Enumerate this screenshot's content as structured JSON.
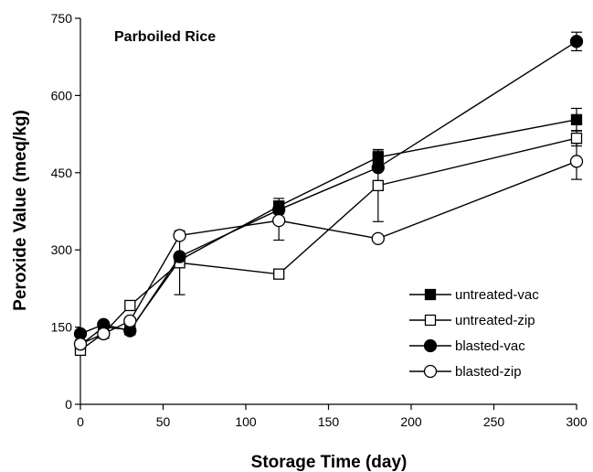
{
  "chart_data": {
    "type": "line",
    "title": "Parboiled Rice",
    "xlabel": "Storage Time (day)",
    "ylabel": "Peroxide Value (meq/kg)",
    "xlim": [
      0,
      300
    ],
    "ylim": [
      0,
      750
    ],
    "xticks": [
      0,
      50,
      100,
      150,
      200,
      250,
      300
    ],
    "yticks": [
      0,
      150,
      300,
      450,
      600,
      750
    ],
    "grid": false,
    "legend_position": "lower-right",
    "series": [
      {
        "name": "untreated-vac",
        "marker": "filled-square",
        "x": [
          0,
          14,
          30,
          60,
          120,
          180,
          300
        ],
        "y": [
          115,
          150,
          145,
          280,
          385,
          480,
          553
        ],
        "err": [
          0,
          0,
          0,
          0,
          15,
          12,
          22
        ]
      },
      {
        "name": "untreated-zip",
        "marker": "open-square",
        "x": [
          0,
          14,
          30,
          60,
          120,
          180,
          300
        ],
        "y": [
          105,
          138,
          192,
          275,
          253,
          425,
          517
        ],
        "err": [
          0,
          0,
          0,
          62,
          0,
          70,
          15
        ]
      },
      {
        "name": "blasted-vac",
        "marker": "filled-circle",
        "x": [
          0,
          14,
          30,
          60,
          120,
          180,
          300
        ],
        "y": [
          137,
          155,
          143,
          287,
          378,
          460,
          705
        ],
        "err": [
          0,
          0,
          0,
          0,
          15,
          0,
          18
        ]
      },
      {
        "name": "blasted-zip",
        "marker": "open-circle",
        "x": [
          0,
          14,
          30,
          60,
          120,
          180,
          300
        ],
        "y": [
          117,
          137,
          162,
          328,
          357,
          322,
          472
        ],
        "err": [
          0,
          0,
          0,
          0,
          38,
          0,
          35
        ]
      }
    ]
  }
}
